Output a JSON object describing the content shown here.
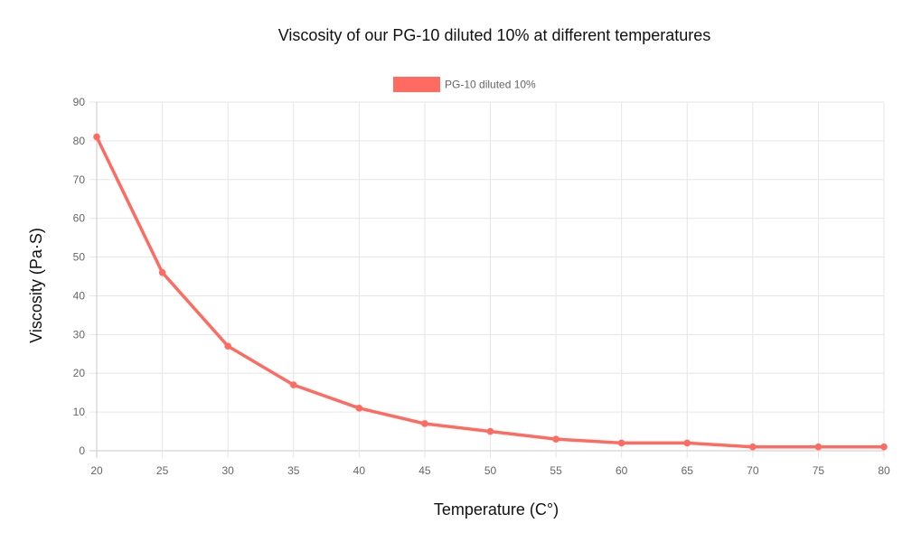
{
  "chart_data": {
    "type": "line",
    "title": "Viscosity of our PG-10 diluted 10% at different temperatures",
    "xlabel": "Temperature (C°)",
    "ylabel": "Viscosity (Pa·S)",
    "x": [
      20,
      25,
      30,
      35,
      40,
      45,
      50,
      55,
      60,
      65,
      70,
      75,
      80
    ],
    "x_tick_labels": [
      "20",
      "25",
      "30",
      "35",
      "40",
      "45",
      "50",
      "55",
      "60",
      "65",
      "70",
      "75",
      "80"
    ],
    "y_tick_labels": [
      "90",
      "80",
      "70",
      "60",
      "50",
      "40",
      "30",
      "20",
      "10",
      "0"
    ],
    "xlim": [
      20,
      80
    ],
    "ylim": [
      0,
      90
    ],
    "grid": true,
    "legend_position": "top",
    "series": [
      {
        "name": "PG-10 diluted 10%",
        "color": "#ff6b61",
        "values": [
          81,
          46,
          27,
          17,
          11,
          7,
          5,
          3,
          2,
          2,
          1,
          1,
          1
        ]
      }
    ]
  }
}
